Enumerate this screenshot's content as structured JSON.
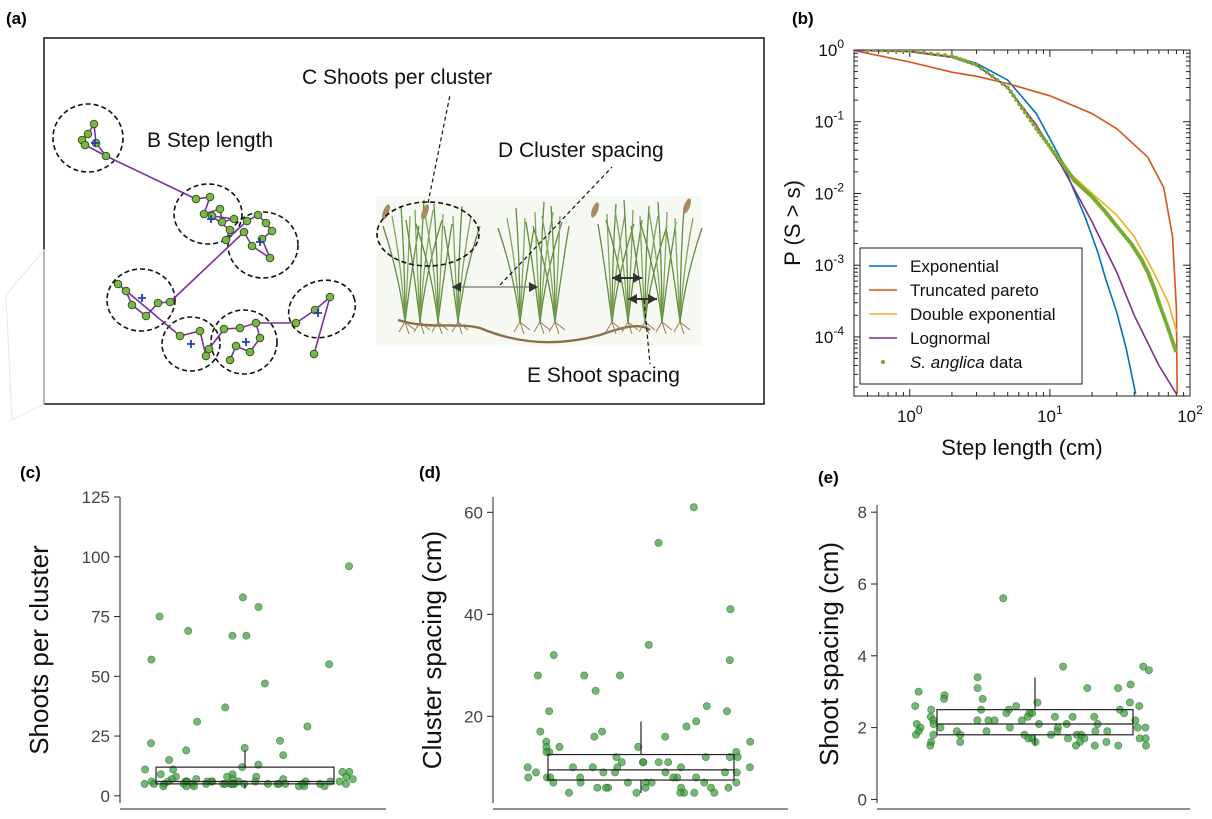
{
  "colors": {
    "exponential": "#0072BD",
    "truncated_pareto": "#D95319",
    "double_exponential": "#EDB120",
    "lognormal": "#7E2F8E",
    "data_point": "#77AC30",
    "dot_green": "#3a9a3a",
    "dot_edge": "#1e6e1e",
    "purple_line": "#7a2fa8",
    "cross_blue": "#2244aa"
  },
  "panel_labels": {
    "a": "(a)",
    "b": "(b)",
    "c": "(c)",
    "d": "(d)",
    "e": "(e)"
  },
  "panel_a": {
    "labels": {
      "step": "B Step length",
      "shoots": "C Shoots per cluster",
      "cluster_spacing": "D Cluster spacing",
      "shoot_spacing": "E Shoot spacing"
    }
  },
  "chart_data": [
    {
      "panel": "b",
      "type": "line",
      "xlabel": "Step length (cm)",
      "ylabel": "P (S > s)",
      "x_scale": "log",
      "y_scale": "log",
      "xlim": [
        0.4,
        100
      ],
      "ylim": [
        1.5e-05,
        1
      ],
      "x_tick_labels": [
        "10^0",
        "10^1",
        "10^2"
      ],
      "y_tick_labels": [
        "10^0",
        "10^-1",
        "10^-2",
        "10^-3",
        "10^-4"
      ],
      "legend_position": "bottom-left",
      "series": [
        {
          "name": "Exponential",
          "color_key": "exponential",
          "points": [
            [
              0.4,
              1.0
            ],
            [
              1,
              0.96
            ],
            [
              2,
              0.82
            ],
            [
              3,
              0.65
            ],
            [
              5,
              0.38
            ],
            [
              8,
              0.13
            ],
            [
              12,
              0.03
            ],
            [
              18,
              0.0045
            ],
            [
              22,
              0.0015
            ],
            [
              25,
              0.00065
            ],
            [
              30,
              0.00022
            ],
            [
              35,
              7e-05
            ],
            [
              41,
              1.6e-05
            ]
          ]
        },
        {
          "name": "Truncated pareto",
          "color_key": "truncated_pareto",
          "points": [
            [
              0.4,
              0.98
            ],
            [
              1,
              0.68
            ],
            [
              2,
              0.49
            ],
            [
              3,
              0.43
            ],
            [
              5,
              0.34
            ],
            [
              10,
              0.23
            ],
            [
              20,
              0.13
            ],
            [
              30,
              0.08
            ],
            [
              50,
              0.032
            ],
            [
              65,
              0.012
            ],
            [
              75,
              0.0025
            ],
            [
              80,
              0.00025
            ],
            [
              81,
              1.6e-05
            ]
          ]
        },
        {
          "name": "Double exponential",
          "color_key": "double_exponential",
          "points": [
            [
              0.4,
              1.0
            ],
            [
              1,
              0.97
            ],
            [
              2,
              0.82
            ],
            [
              3,
              0.62
            ],
            [
              5,
              0.3
            ],
            [
              8,
              0.08
            ],
            [
              12,
              0.025
            ],
            [
              20,
              0.01
            ],
            [
              30,
              0.005
            ],
            [
              40,
              0.0025
            ],
            [
              55,
              0.0008
            ],
            [
              70,
              0.0003
            ],
            [
              80,
              0.00012
            ]
          ]
        },
        {
          "name": "Lognormal",
          "color_key": "lognormal",
          "points": [
            [
              0.4,
              0.99
            ],
            [
              1,
              0.95
            ],
            [
              2,
              0.79
            ],
            [
              3,
              0.61
            ],
            [
              5,
              0.3
            ],
            [
              8,
              0.09
            ],
            [
              12,
              0.025
            ],
            [
              20,
              0.004
            ],
            [
              30,
              0.0008
            ],
            [
              40,
              0.0002
            ],
            [
              60,
              4e-05
            ],
            [
              80,
              1.6e-05
            ]
          ]
        },
        {
          "name": "S. anglica data",
          "name_prefix": "S. anglica",
          "name_suffix": " data",
          "color_key": "data_point",
          "marker": "dot",
          "points": [
            [
              0.5,
              1.0
            ],
            [
              1,
              0.97
            ],
            [
              2,
              0.82
            ],
            [
              3,
              0.62
            ],
            [
              5,
              0.3
            ],
            [
              8,
              0.08
            ],
            [
              12,
              0.028
            ],
            [
              15,
              0.015
            ],
            [
              20,
              0.009
            ],
            [
              25,
              0.0055
            ],
            [
              30,
              0.0035
            ],
            [
              38,
              0.002
            ],
            [
              45,
              0.0012
            ],
            [
              50,
              0.0008
            ],
            [
              55,
              0.0005
            ],
            [
              60,
              0.0003
            ],
            [
              70,
              0.00013
            ],
            [
              80,
              6e-05
            ]
          ]
        }
      ]
    },
    {
      "panel": "c",
      "type": "scatter",
      "ylabel": "Shoots per cluster",
      "ylim": [
        -3,
        125
      ],
      "y_ticks": [
        0,
        25,
        50,
        75,
        100,
        125
      ],
      "box": {
        "q1": 5,
        "median": 6,
        "q3": 12,
        "whisker_low": 3,
        "whisker_high": 19
      },
      "values": [
        83,
        79,
        75,
        69,
        67,
        67,
        57,
        55,
        47,
        37,
        31,
        29,
        23,
        22,
        20,
        19,
        17,
        15,
        13,
        12,
        11,
        11,
        10,
        10,
        9,
        9,
        8,
        8,
        8,
        8,
        7,
        7,
        7,
        7,
        7,
        6,
        6,
        6,
        6,
        6,
        6,
        6,
        6,
        6,
        6,
        6,
        6,
        6,
        5,
        5,
        5,
        5,
        5,
        5,
        5,
        5,
        5,
        5,
        5,
        5,
        5,
        5,
        5,
        5,
        5,
        5,
        5,
        5,
        5,
        4,
        4,
        4,
        4,
        4,
        4,
        96
      ]
    },
    {
      "panel": "d",
      "type": "scatter",
      "ylabel": "Cluster spacing (cm)",
      "ylim": [
        3,
        63
      ],
      "y_ticks": [
        20,
        40,
        60
      ],
      "box": {
        "q1": 7.5,
        "median": 9.5,
        "q3": 12.5,
        "whisker_low": 5,
        "whisker_high": 19
      },
      "values": [
        61,
        54,
        41,
        34,
        32,
        31,
        28,
        28,
        28,
        25,
        22,
        21,
        21,
        19,
        18,
        17,
        17,
        16,
        16,
        15,
        15,
        14,
        14,
        14,
        13,
        13,
        13,
        12,
        12,
        12,
        12,
        11,
        11,
        11,
        11,
        11,
        10,
        10,
        10,
        10,
        10,
        10,
        9,
        9,
        9,
        9,
        9,
        9,
        8,
        8,
        8,
        8,
        8,
        8,
        8,
        7,
        7,
        7,
        7,
        7,
        7,
        7,
        6,
        6,
        6,
        6,
        6,
        6,
        6,
        5,
        5,
        5,
        5,
        5,
        5
      ]
    },
    {
      "panel": "e",
      "type": "scatter",
      "ylabel": "Shoot spacing (cm)",
      "ylim": [
        -0.1,
        8.2
      ],
      "y_ticks": [
        0,
        2,
        4,
        6,
        8
      ],
      "box": {
        "q1": 1.8,
        "median": 2.1,
        "q3": 2.5,
        "whisker_low": 1.5,
        "whisker_high": 3.4
      },
      "values": [
        5.6,
        3.7,
        3.7,
        3.6,
        3.4,
        3.2,
        3.1,
        3.1,
        3.1,
        3.0,
        2.9,
        2.8,
        2.8,
        2.7,
        2.7,
        2.6,
        2.6,
        2.6,
        2.5,
        2.5,
        2.5,
        2.5,
        2.4,
        2.4,
        2.4,
        2.4,
        2.3,
        2.3,
        2.3,
        2.3,
        2.3,
        2.2,
        2.2,
        2.2,
        2.2,
        2.2,
        2.2,
        2.1,
        2.1,
        2.1,
        2.1,
        2.1,
        2.0,
        2.0,
        2.0,
        2.0,
        2.0,
        2.0,
        1.9,
        1.9,
        1.9,
        1.9,
        1.9,
        1.9,
        1.8,
        1.8,
        1.8,
        1.8,
        1.8,
        1.8,
        1.8,
        1.7,
        1.7,
        1.7,
        1.7,
        1.7,
        1.7,
        1.6,
        1.6,
        1.6,
        1.6,
        1.6,
        1.5,
        1.5,
        1.5,
        1.5,
        1.5
      ]
    }
  ]
}
